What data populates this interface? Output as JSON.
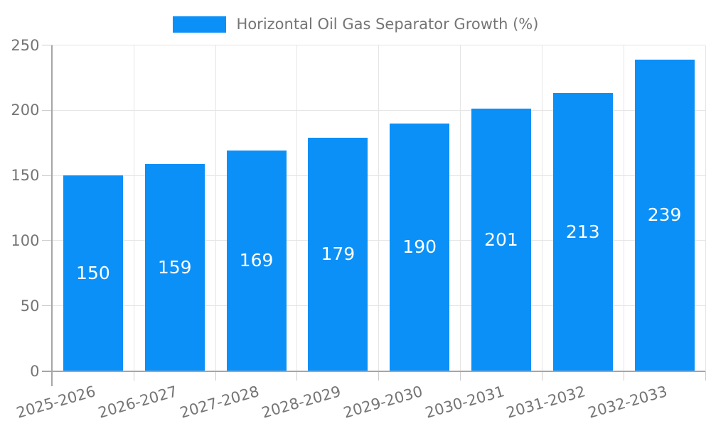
{
  "chart_data": {
    "type": "bar",
    "title": "Horizontal Oil Gas Separator Growth (%)",
    "categories": [
      "2025-2026",
      "2026-2027",
      "2027-2028",
      "2028-2029",
      "2029-2030",
      "2030-2031",
      "2031-2032",
      "2032-2033"
    ],
    "values": [
      150,
      159,
      169,
      179,
      190,
      201,
      213,
      239
    ],
    "bar_value_labels": [
      "150",
      "159",
      "169",
      "179",
      "190",
      "201",
      "213",
      "239"
    ],
    "xlabel": "",
    "ylabel": "",
    "ylim": [
      0,
      250
    ],
    "yticks": [
      0,
      50,
      100,
      150,
      200,
      250
    ],
    "grid": true,
    "legend_position": "top-center",
    "colors": {
      "bar": "#0b90f8",
      "bar_label": "#ffffff",
      "text": "#757575",
      "grid": "#e5e5e5",
      "axis": "#a6a6a6",
      "tick": "#cccccc",
      "background": "#ffffff"
    }
  }
}
